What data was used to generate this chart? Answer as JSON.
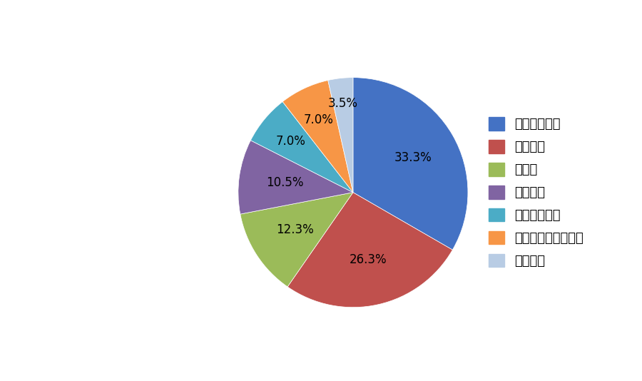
{
  "labels": [
    "金属切削机床",
    "磨料磨具",
    "工量具",
    "数控装置",
    "金属成形机床",
    "机床附件及功能部件",
    "木工机械"
  ],
  "values": [
    33.3,
    26.3,
    12.3,
    10.5,
    7.0,
    7.0,
    3.5
  ],
  "colors": [
    "#4472C4",
    "#C0504D",
    "#9BBB59",
    "#8064A2",
    "#4BACC6",
    "#F79646",
    "#B8CCE4"
  ],
  "pct_labels": [
    "33.3%",
    "26.3%",
    "12.3%",
    "10.5%",
    "7.0%",
    "7.0%",
    "3.5%"
  ],
  "startangle": 90,
  "background_color": "#FFFFFF",
  "legend_fontsize": 13,
  "label_fontsize": 12
}
